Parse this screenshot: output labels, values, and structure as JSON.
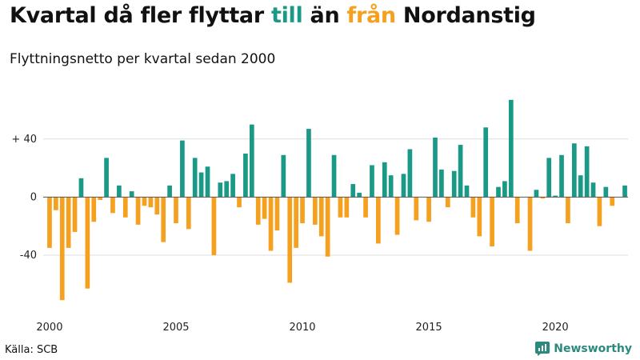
{
  "title": {
    "part1": "Kvartal då fler flyttar ",
    "till": "till",
    "part2": " än ",
    "fran": "från",
    "part3": " Nordanstig"
  },
  "subtitle": "Flyttningsnetto per kvartal sedan 2000",
  "source": "Källa: SCB",
  "brand": "Newsworthy",
  "colors": {
    "positive": "#1a9a86",
    "negative": "#f5a01f",
    "axis": "#555555",
    "grid": "#dddddd"
  },
  "chart_data": {
    "type": "bar",
    "title": "Kvartal då fler flyttar till än från Nordanstig",
    "subtitle": "Flyttningsnetto per kvartal sedan 2000",
    "x_start": "2000 Q1",
    "ylim": [
      -72,
      68
    ],
    "y_ticks": [
      {
        "value": 40,
        "label": "+ 40"
      },
      {
        "value": 0,
        "label": "0"
      },
      {
        "value": -40,
        "label": "-40"
      }
    ],
    "x_ticks": [
      {
        "year": 2000,
        "label": "2000"
      },
      {
        "year": 2005,
        "label": "2005"
      },
      {
        "year": 2010,
        "label": "2010"
      },
      {
        "year": 2015,
        "label": "2015"
      },
      {
        "year": 2020,
        "label": "2020"
      }
    ],
    "grid": true,
    "values": [
      -35,
      -9,
      -71,
      -35,
      -24,
      13,
      -63,
      -17,
      -2,
      27,
      -11,
      8,
      -14,
      4,
      -19,
      -6,
      -7,
      -12,
      -31,
      8,
      -18,
      39,
      -22,
      27,
      17,
      21,
      -40,
      10,
      11,
      16,
      -7,
      30,
      50,
      -19,
      -15,
      -37,
      -23,
      29,
      -59,
      -35,
      -18,
      47,
      -19,
      -27,
      -41,
      29,
      -14,
      -14,
      9,
      3,
      -14,
      22,
      -32,
      24,
      15,
      -26,
      16,
      33,
      -16,
      0,
      -17,
      41,
      19,
      -7,
      18,
      36,
      8,
      -14,
      -27,
      48,
      -34,
      7,
      11,
      67,
      -18,
      0,
      -37,
      5,
      -1,
      27,
      1,
      29,
      -18,
      37,
      15,
      35,
      10,
      -20,
      7,
      -6,
      0,
      8
    ]
  }
}
